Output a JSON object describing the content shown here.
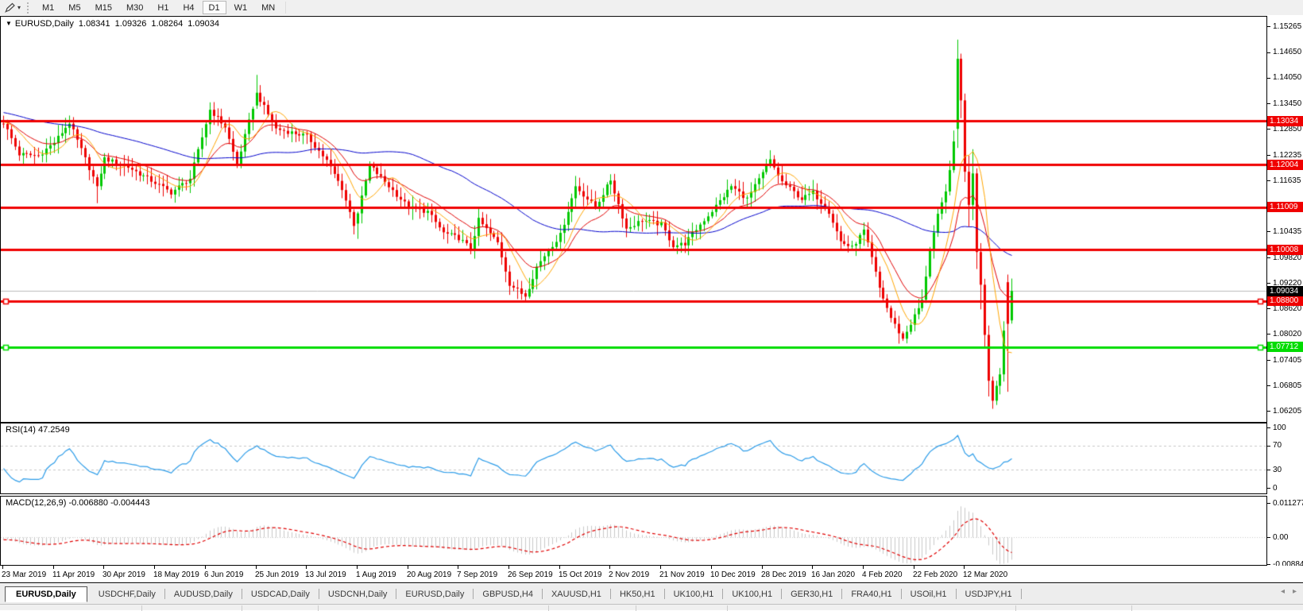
{
  "icons": {
    "collapse_triangle": "▼",
    "dropdown_caret": "▾",
    "tab_scroll_left": "◂",
    "tab_scroll_right": "▸"
  },
  "toolbar": {
    "timeframes": [
      "M1",
      "M5",
      "M15",
      "M30",
      "H1",
      "H4",
      "D1",
      "W1",
      "MN"
    ],
    "active_timeframe": "D1"
  },
  "chart_header": {
    "symbol": "EURUSD,Daily",
    "open": "1.08341",
    "high": "1.09326",
    "low": "1.08264",
    "close": "1.09034"
  },
  "rsi_panel": {
    "label": "RSI(14) 47.2549",
    "axis_labels": [
      {
        "text": "100",
        "value": 100
      },
      {
        "text": "70",
        "value": 70
      },
      {
        "text": "30",
        "value": 30
      },
      {
        "text": "0",
        "value": 0
      }
    ],
    "levels": [
      70,
      30
    ]
  },
  "macd_panel": {
    "label": "MACD(12,26,9) -0.006880 -0.004443",
    "axis_labels": [
      {
        "text": "0.011277",
        "pos": "max"
      },
      {
        "text": "0.00",
        "pos": "zero"
      },
      {
        "text": "-0.008845",
        "pos": "min"
      }
    ]
  },
  "tabs": {
    "items": [
      {
        "label": "EURUSD,Daily",
        "active": true
      },
      {
        "label": "USDCHF,Daily"
      },
      {
        "label": "AUDUSD,Daily"
      },
      {
        "label": "USDCAD,Daily"
      },
      {
        "label": "USDCNH,Daily"
      },
      {
        "label": "EURUSD,Daily"
      },
      {
        "label": "GBPUSD,H4"
      },
      {
        "label": "XAUUSD,H1"
      },
      {
        "label": "HK50,H1"
      },
      {
        "label": "UK100,H1"
      },
      {
        "label": "UK100,H1"
      },
      {
        "label": "GER30,H1"
      },
      {
        "label": "FRA40,H1"
      },
      {
        "label": "USOil,H1"
      },
      {
        "label": "USDJPY,H1"
      }
    ]
  },
  "status_bar": {
    "dividers": [
      178,
      304,
      400,
      690,
      800,
      915,
      1278,
      1424
    ]
  },
  "chart_data": {
    "type": "candlestick",
    "symbol": "EURUSD",
    "timeframe": "Daily",
    "title": "EURUSD,Daily",
    "current_bar": {
      "open": 1.08341,
      "high": 1.09326,
      "low": 1.08264,
      "close": 1.09034
    },
    "colors": {
      "up": "#00C800",
      "down": "#EE0000",
      "hline_red": "#F00000",
      "hline_green": "#00DC00",
      "current_price_gray": "#BBBBBB",
      "ma_fast": "#FFA500",
      "ma_mid": "#E00000",
      "ma_slow": "#0000CC",
      "rsi_line": "#2D9CE8",
      "rsi_levels": "#C6C6C6",
      "macd_histogram": "#C8C8C8",
      "macd_signal": "#E00000"
    },
    "y_axis": {
      "decimals": 5,
      "top_price": 1.1549,
      "bottom_price": 1.0597,
      "ticks": [
        "1.15265",
        "1.14650",
        "1.14050",
        "1.13450",
        "1.12850",
        "1.12235",
        "1.11635",
        "1.10435",
        "1.09820",
        "1.09220",
        "1.08620",
        "1.08020",
        "1.07405",
        "1.06805",
        "1.06205"
      ]
    },
    "x_axis": {
      "bars_per_label": 13,
      "labels": [
        "23 Mar 2019",
        "11 Apr 2019",
        "30 Apr 2019",
        "18 May 2019",
        "6 Jun 2019",
        "25 Jun 2019",
        "13 Jul 2019",
        "1 Aug 2019",
        "20 Aug 2019",
        "7 Sep 2019",
        "26 Sep 2019",
        "15 Oct 2019",
        "2 Nov 2019",
        "21 Nov 2019",
        "10 Dec 2019",
        "28 Dec 2019",
        "16 Jan 2020",
        "4 Feb 2020",
        "22 Feb 2020",
        "12 Mar 2020"
      ]
    },
    "bars_total": 260,
    "horizontal_lines": [
      {
        "price": 1.13034,
        "label": "1.13034",
        "color": "#F00000",
        "text_color": "#FFFFFF",
        "width": 3,
        "selected": false
      },
      {
        "price": 1.12004,
        "label": "1.12004",
        "color": "#F00000",
        "text_color": "#FFFFFF",
        "width": 3,
        "selected": false
      },
      {
        "price": 1.11009,
        "label": "1.11009",
        "color": "#F00000",
        "text_color": "#FFFFFF",
        "width": 3,
        "selected": false
      },
      {
        "price": 1.10008,
        "label": "1.10008",
        "color": "#F00000",
        "text_color": "#FFFFFF",
        "width": 3,
        "selected": false
      },
      {
        "price": 1.088,
        "label": "1.08800",
        "color": "#F00000",
        "text_color": "#FFFFFF",
        "width": 3,
        "selected": true
      },
      {
        "price": 1.07712,
        "label": "1.07712",
        "color": "#00DC00",
        "text_color": "#FFFFFF",
        "width": 3,
        "selected": true
      }
    ],
    "current_price_line": {
      "price": 1.09034,
      "label": "1.09034",
      "badge_bg": "#000000",
      "badge_text": "#FFFFFF"
    },
    "moving_averages": [
      {
        "period": 8,
        "type": "sma",
        "color_key": "ma_fast"
      },
      {
        "period": 16,
        "type": "ema",
        "color_key": "ma_mid"
      },
      {
        "period": 55,
        "type": "sma",
        "color_key": "ma_slow"
      }
    ],
    "indicators": [
      {
        "name": "RSI",
        "period": 14,
        "current_value": 47.2549
      },
      {
        "name": "MACD",
        "fast": 12,
        "slow": 26,
        "signal": 9,
        "current_value": -0.00688,
        "current_signal": -0.004443,
        "axis_max": 0.011277,
        "axis_min": -0.008845
      }
    ],
    "synthesis": {
      "noise": 0.0011,
      "wick": 0.0022,
      "pre_bars": 60
    },
    "close_anchors": [
      [
        -60,
        1.142
      ],
      [
        -45,
        1.133
      ],
      [
        -30,
        1.1335
      ],
      [
        -15,
        1.13
      ],
      [
        0,
        1.13
      ],
      [
        4,
        1.1225
      ],
      [
        9,
        1.1222
      ],
      [
        13,
        1.1253
      ],
      [
        17,
        1.13
      ],
      [
        24,
        1.115
      ],
      [
        26,
        1.1215
      ],
      [
        32,
        1.1195
      ],
      [
        39,
        1.1158
      ],
      [
        43,
        1.1135
      ],
      [
        48,
        1.1168
      ],
      [
        53,
        1.133
      ],
      [
        57,
        1.129
      ],
      [
        60,
        1.12
      ],
      [
        65,
        1.137
      ],
      [
        70,
        1.1285
      ],
      [
        78,
        1.1268
      ],
      [
        83,
        1.121
      ],
      [
        87,
        1.1145
      ],
      [
        90,
        1.106
      ],
      [
        91,
        1.1085
      ],
      [
        94,
        1.12
      ],
      [
        100,
        1.114
      ],
      [
        104,
        1.11
      ],
      [
        109,
        1.109
      ],
      [
        113,
        1.104
      ],
      [
        117,
        1.1028
      ],
      [
        120,
        1.1003
      ],
      [
        122,
        1.107
      ],
      [
        127,
        1.1017
      ],
      [
        130,
        1.092
      ],
      [
        134,
        1.089
      ],
      [
        137,
        1.096
      ],
      [
        140,
        1.1
      ],
      [
        143,
        1.1035
      ],
      [
        147,
        1.115
      ],
      [
        152,
        1.11
      ],
      [
        156,
        1.1165
      ],
      [
        160,
        1.105
      ],
      [
        164,
        1.107
      ],
      [
        169,
        1.106
      ],
      [
        172,
        1.101
      ],
      [
        175,
        1.1015
      ],
      [
        179,
        1.106
      ],
      [
        182,
        1.1092
      ],
      [
        187,
        1.115
      ],
      [
        191,
        1.112
      ],
      [
        195,
        1.118
      ],
      [
        197,
        1.121
      ],
      [
        200,
        1.116
      ],
      [
        205,
        1.112
      ],
      [
        208,
        1.1135
      ],
      [
        212,
        1.109
      ],
      [
        215,
        1.102
      ],
      [
        218,
        1.1005
      ],
      [
        221,
        1.1045
      ],
      [
        223,
        1.098
      ],
      [
        225,
        1.091
      ],
      [
        228,
        1.084
      ],
      [
        231,
        1.079
      ],
      [
        234,
        1.0845
      ],
      [
        236,
        1.088
      ],
      [
        238,
        1.1
      ],
      [
        240,
        1.108
      ],
      [
        242,
        1.1135
      ],
      [
        244,
        1.125
      ],
      [
        245,
        1.145
      ]
    ],
    "explicit_bars": {
      "24": [
        1.1171,
        1.1178,
        1.111,
        1.115
      ],
      "65": [
        1.134,
        1.1412,
        1.1332,
        1.137
      ],
      "91": [
        1.1062,
        1.109,
        1.1026,
        1.1086
      ],
      "134": [
        1.0898,
        1.0906,
        1.0879,
        1.089
      ],
      "245": [
        1.1285,
        1.1495,
        1.124,
        1.145
      ],
      "246": [
        1.145,
        1.1462,
        1.131,
        1.1352
      ],
      "247": [
        1.1352,
        1.1368,
        1.116,
        1.1184
      ],
      "248": [
        1.1184,
        1.1222,
        1.1055,
        1.1106
      ],
      "249": [
        1.1106,
        1.1237,
        1.107,
        1.118
      ],
      "250": [
        1.118,
        1.1192,
        1.0955,
        1.0995
      ],
      "251": [
        1.0995,
        1.1016,
        1.086,
        1.0918
      ],
      "252": [
        1.0918,
        1.0932,
        1.077,
        1.08
      ],
      "253": [
        1.08,
        1.0822,
        1.0655,
        1.0692
      ],
      "254": [
        1.0692,
        1.0702,
        1.0626,
        1.0645
      ],
      "255": [
        1.0645,
        1.0692,
        1.0635,
        1.068
      ],
      "256": [
        1.068,
        1.0722,
        1.066,
        1.0707
      ],
      "257": [
        1.0707,
        1.0832,
        1.069,
        1.081
      ],
      "258": [
        1.0924,
        1.0942,
        1.0666,
        1.0826
      ],
      "259": [
        1.08341,
        1.09326,
        1.08264,
        1.09034
      ]
    }
  }
}
